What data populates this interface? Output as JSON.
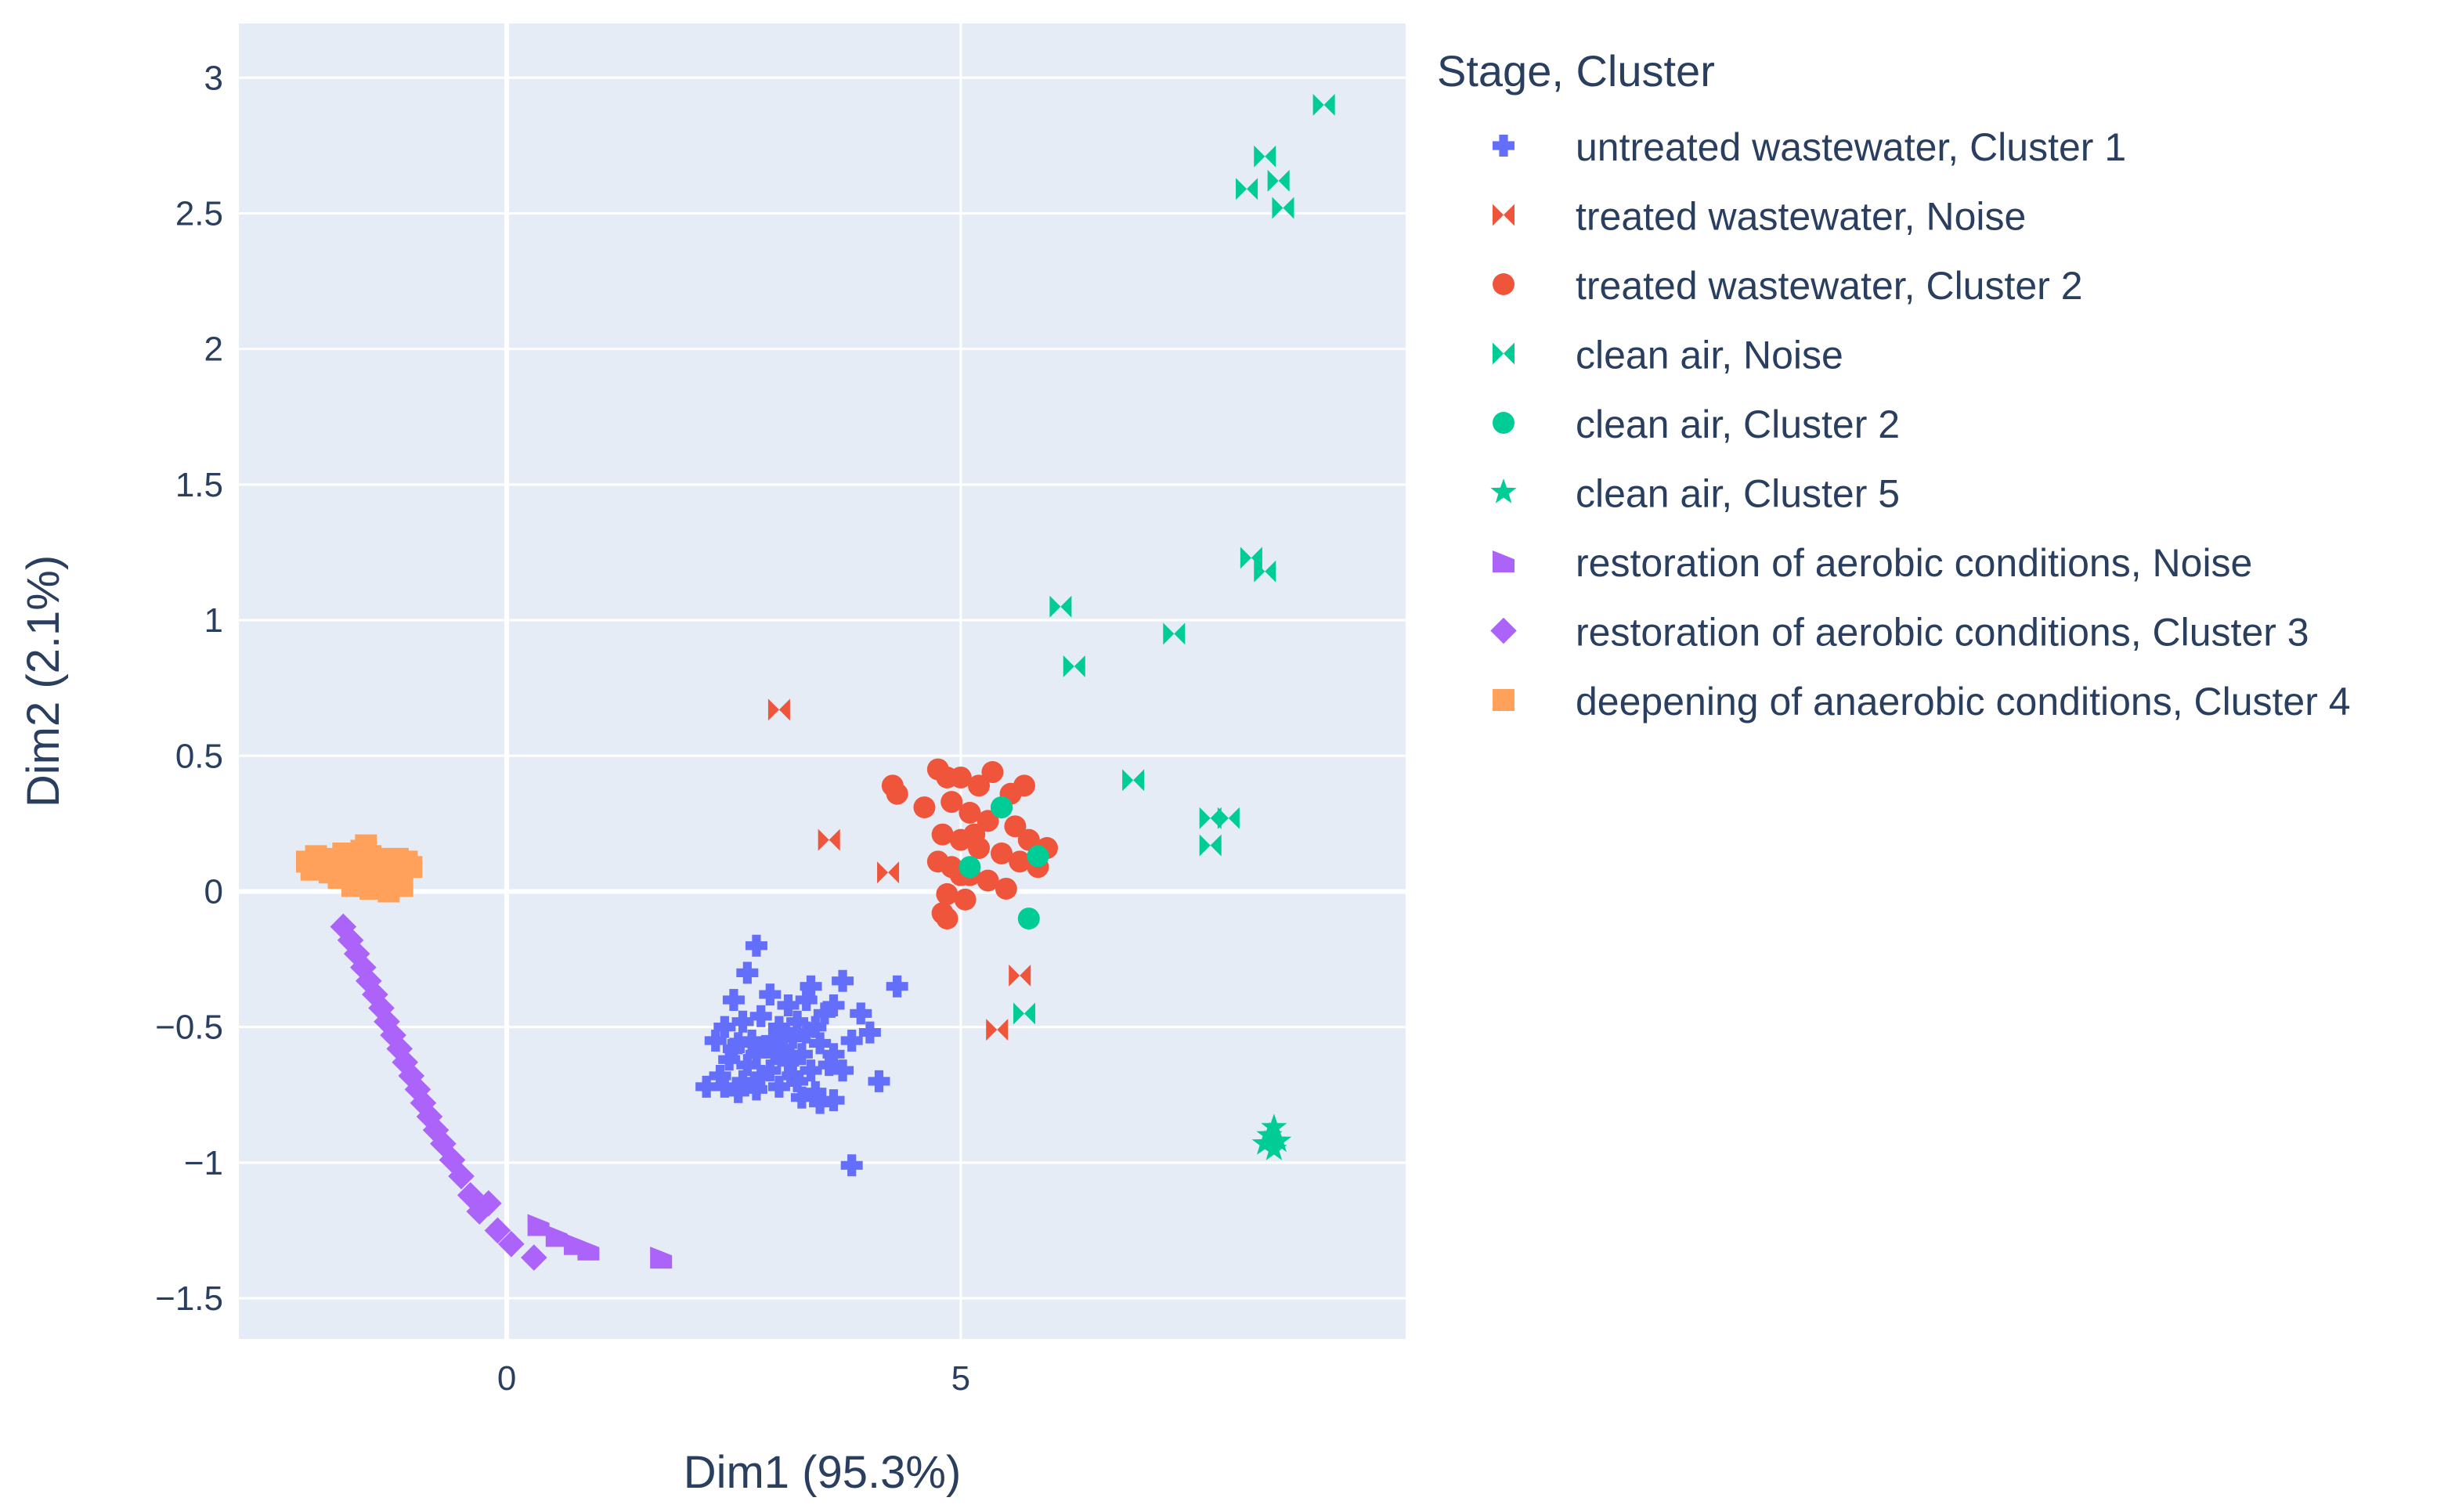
{
  "colors": {
    "plot_bg": "#e5ecf6",
    "grid": "#ffffff",
    "text": "#2a3f5f"
  },
  "chart_data": {
    "type": "scatter",
    "title": "",
    "xlabel": "Dim1 (95.3%)",
    "ylabel": "Dim2 (2.1%)",
    "xlim": [
      -2.95,
      9.9
    ],
    "ylim": [
      -1.65,
      3.2
    ],
    "xticks": [
      0,
      5
    ],
    "yticks": [
      3,
      2.5,
      2,
      1.5,
      1,
      0.5,
      0,
      -0.5,
      -1,
      -1.5
    ],
    "xtick_labels": [
      "0",
      "5"
    ],
    "ytick_labels": [
      "3",
      "2.5",
      "2",
      "1.5",
      "1",
      "0.5",
      "0",
      "−0.5",
      "−1",
      "−1.5"
    ],
    "legend_title": "Stage, Cluster",
    "legend_position": "right",
    "series": [
      {
        "name": "untreated wastewater, Cluster 1",
        "color": "#636efa",
        "marker": "cross",
        "points": [
          [
            2.75,
            -0.2
          ],
          [
            2.65,
            -0.3
          ],
          [
            3.35,
            -0.35
          ],
          [
            3.7,
            -0.33
          ],
          [
            4.3,
            -0.35
          ],
          [
            2.5,
            -0.4
          ],
          [
            2.9,
            -0.38
          ],
          [
            3.1,
            -0.42
          ],
          [
            3.3,
            -0.4
          ],
          [
            3.6,
            -0.42
          ],
          [
            3.9,
            -0.45
          ],
          [
            2.4,
            -0.5
          ],
          [
            2.6,
            -0.48
          ],
          [
            2.8,
            -0.46
          ],
          [
            3.0,
            -0.5
          ],
          [
            3.2,
            -0.48
          ],
          [
            3.4,
            -0.5
          ],
          [
            3.5,
            -0.45
          ],
          [
            3.8,
            -0.55
          ],
          [
            4.0,
            -0.52
          ],
          [
            2.3,
            -0.55
          ],
          [
            2.55,
            -0.56
          ],
          [
            2.7,
            -0.55
          ],
          [
            2.85,
            -0.57
          ],
          [
            2.95,
            -0.55
          ],
          [
            3.05,
            -0.58
          ],
          [
            3.15,
            -0.54
          ],
          [
            3.25,
            -0.6
          ],
          [
            3.45,
            -0.56
          ],
          [
            3.6,
            -0.6
          ],
          [
            2.45,
            -0.62
          ],
          [
            2.65,
            -0.64
          ],
          [
            2.9,
            -0.66
          ],
          [
            3.1,
            -0.63
          ],
          [
            3.35,
            -0.66
          ],
          [
            3.55,
            -0.64
          ],
          [
            3.7,
            -0.66
          ],
          [
            2.35,
            -0.68
          ],
          [
            2.6,
            -0.7
          ],
          [
            2.8,
            -0.68
          ],
          [
            3.0,
            -0.72
          ],
          [
            3.2,
            -0.7
          ],
          [
            3.4,
            -0.74
          ],
          [
            2.2,
            -0.72
          ],
          [
            2.4,
            -0.72
          ],
          [
            2.55,
            -0.74
          ],
          [
            2.75,
            -0.73
          ],
          [
            3.25,
            -0.76
          ],
          [
            3.45,
            -0.78
          ],
          [
            3.6,
            -0.77
          ],
          [
            4.1,
            -0.7
          ],
          [
            3.8,
            -1.01
          ],
          [
            3.0,
            -0.52
          ],
          [
            2.75,
            -0.6
          ],
          [
            3.3,
            -0.52
          ],
          [
            2.95,
            -0.6
          ],
          [
            3.15,
            -0.68
          ],
          [
            2.5,
            -0.58
          ]
        ]
      },
      {
        "name": "treated wastewater, Noise",
        "color": "#ef553b",
        "marker": "bowtie",
        "points": [
          [
            3.0,
            0.67
          ],
          [
            3.55,
            0.19
          ],
          [
            4.2,
            0.07
          ],
          [
            5.65,
            -0.31
          ],
          [
            5.4,
            -0.51
          ]
        ]
      },
      {
        "name": "treated wastewater, Cluster 2",
        "color": "#ef553b",
        "marker": "circle",
        "points": [
          [
            4.25,
            0.39
          ],
          [
            4.3,
            0.36
          ],
          [
            4.75,
            0.45
          ],
          [
            4.85,
            0.42
          ],
          [
            5.0,
            0.42
          ],
          [
            5.2,
            0.39
          ],
          [
            5.35,
            0.44
          ],
          [
            5.55,
            0.36
          ],
          [
            5.7,
            0.39
          ],
          [
            4.6,
            0.31
          ],
          [
            4.9,
            0.33
          ],
          [
            5.1,
            0.29
          ],
          [
            5.3,
            0.26
          ],
          [
            5.6,
            0.24
          ],
          [
            5.75,
            0.19
          ],
          [
            4.8,
            0.21
          ],
          [
            5.0,
            0.19
          ],
          [
            5.2,
            0.16
          ],
          [
            5.45,
            0.14
          ],
          [
            5.65,
            0.11
          ],
          [
            5.95,
            0.16
          ],
          [
            4.75,
            0.11
          ],
          [
            4.9,
            0.09
          ],
          [
            5.1,
            0.06
          ],
          [
            5.3,
            0.04
          ],
          [
            5.5,
            0.01
          ],
          [
            5.85,
            0.09
          ],
          [
            4.85,
            -0.01
          ],
          [
            5.05,
            -0.03
          ],
          [
            4.8,
            -0.08
          ],
          [
            4.85,
            -0.1
          ],
          [
            5.15,
            0.21
          ],
          [
            5.45,
            0.31
          ],
          [
            5.0,
            0.06
          ]
        ]
      },
      {
        "name": "clean air, Noise",
        "color": "#00cc96",
        "marker": "bowtie",
        "points": [
          [
            9.0,
            2.9
          ],
          [
            8.35,
            2.71
          ],
          [
            8.5,
            2.62
          ],
          [
            8.15,
            2.59
          ],
          [
            8.55,
            2.52
          ],
          [
            8.2,
            1.23
          ],
          [
            8.35,
            1.18
          ],
          [
            6.1,
            1.05
          ],
          [
            7.35,
            0.95
          ],
          [
            6.25,
            0.83
          ],
          [
            6.9,
            0.41
          ],
          [
            7.75,
            0.27
          ],
          [
            7.95,
            0.27
          ],
          [
            7.75,
            0.17
          ],
          [
            5.7,
            -0.45
          ]
        ]
      },
      {
        "name": "clean air, Cluster 2",
        "color": "#00cc96",
        "marker": "circle",
        "points": [
          [
            5.45,
            0.31
          ],
          [
            5.1,
            0.09
          ],
          [
            5.85,
            0.13
          ],
          [
            5.75,
            -0.1
          ]
        ]
      },
      {
        "name": "clean air, Cluster 5",
        "color": "#00cc96",
        "marker": "star",
        "points": [
          [
            8.45,
            -0.87
          ],
          [
            8.4,
            -0.9
          ],
          [
            8.5,
            -0.92
          ],
          [
            8.35,
            -0.93
          ],
          [
            8.45,
            -0.95
          ]
        ]
      },
      {
        "name": "restoration of aerobic conditions, Noise",
        "color": "#ab63fa",
        "marker": "bowtie-v",
        "points": [
          [
            0.35,
            -1.23
          ],
          [
            0.55,
            -1.27
          ],
          [
            0.75,
            -1.3
          ],
          [
            0.9,
            -1.32
          ],
          [
            1.7,
            -1.35
          ]
        ]
      },
      {
        "name": "restoration of aerobic conditions, Cluster 3",
        "color": "#ab63fa",
        "marker": "diamond",
        "points": [
          [
            -1.8,
            -0.13
          ],
          [
            -1.72,
            -0.18
          ],
          [
            -1.65,
            -0.23
          ],
          [
            -1.58,
            -0.28
          ],
          [
            -1.52,
            -0.33
          ],
          [
            -1.45,
            -0.38
          ],
          [
            -1.38,
            -0.43
          ],
          [
            -1.32,
            -0.48
          ],
          [
            -1.25,
            -0.53
          ],
          [
            -1.18,
            -0.58
          ],
          [
            -1.12,
            -0.63
          ],
          [
            -1.05,
            -0.68
          ],
          [
            -0.98,
            -0.73
          ],
          [
            -0.92,
            -0.78
          ],
          [
            -0.85,
            -0.83
          ],
          [
            -0.78,
            -0.88
          ],
          [
            -0.7,
            -0.93
          ],
          [
            -0.6,
            -0.99
          ],
          [
            -0.5,
            -1.05
          ],
          [
            -0.4,
            -1.12
          ],
          [
            -0.3,
            -1.18
          ],
          [
            -0.2,
            -1.15
          ],
          [
            -0.1,
            -1.25
          ],
          [
            0.05,
            -1.3
          ],
          [
            0.3,
            -1.35
          ]
        ]
      },
      {
        "name": "deepening of anaerobic conditions, Cluster 4",
        "color": "#ffa15a",
        "marker": "square",
        "points": [
          [
            -2.2,
            0.11
          ],
          [
            -2.1,
            0.13
          ],
          [
            -2.0,
            0.1
          ],
          [
            -1.9,
            0.12
          ],
          [
            -1.8,
            0.14
          ],
          [
            -1.7,
            0.11
          ],
          [
            -1.6,
            0.15
          ],
          [
            -1.5,
            0.13
          ],
          [
            -1.4,
            0.12
          ],
          [
            -1.3,
            0.1
          ],
          [
            -1.2,
            0.12
          ],
          [
            -1.1,
            0.11
          ],
          [
            -1.05,
            0.09
          ],
          [
            -1.95,
            0.07
          ],
          [
            -1.85,
            0.05
          ],
          [
            -1.75,
            0.08
          ],
          [
            -1.65,
            0.06
          ],
          [
            -1.55,
            0.04
          ],
          [
            -1.45,
            0.07
          ],
          [
            -1.35,
            0.03
          ],
          [
            -1.25,
            0.05
          ],
          [
            -1.15,
            0.02
          ],
          [
            -1.7,
            0.02
          ],
          [
            -1.5,
            0.01
          ],
          [
            -1.3,
            0.0
          ],
          [
            -1.55,
            0.17
          ],
          [
            -2.15,
            0.08
          ]
        ]
      }
    ]
  }
}
